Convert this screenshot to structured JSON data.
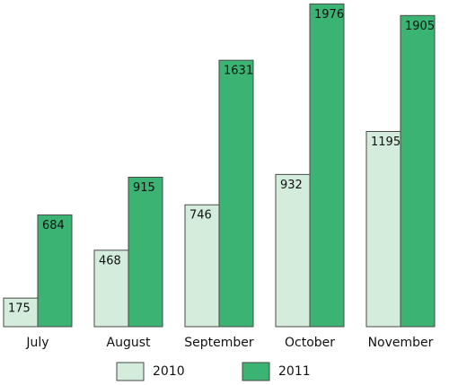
{
  "chart_data": {
    "type": "bar",
    "categories": [
      "July",
      "August",
      "September",
      "October",
      "November"
    ],
    "series": [
      {
        "name": "2010",
        "color": "#d3ecdc",
        "values": [
          175,
          468,
          746,
          932,
          1195
        ]
      },
      {
        "name": "2011",
        "color": "#3bb373",
        "values": [
          684,
          915,
          1631,
          1976,
          1905
        ]
      }
    ],
    "ylim": [
      0,
      2000
    ]
  }
}
